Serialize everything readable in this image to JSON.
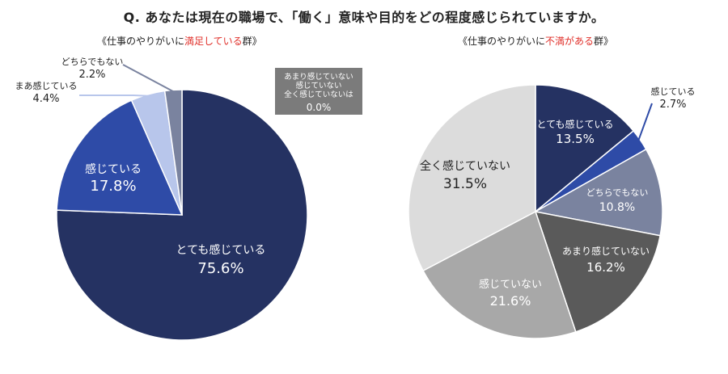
{
  "title": "Q. あなたは現在の職場で、「働く」意味や目的をどの程度感じられていますか。",
  "charts": {
    "left": {
      "subtitle": {
        "pre": "《仕事のやりがいに",
        "hl": "満足している",
        "post": "群》"
      }
    },
    "right": {
      "subtitle": {
        "pre": "《仕事のやりがいに",
        "hl": "不満がある",
        "post": "群》"
      }
    }
  },
  "chart_data": [
    {
      "type": "pie",
      "title": "《仕事のやりがいに満足している群》",
      "slices": [
        {
          "label": "とても感じている",
          "value": 75.6,
          "value_text": "75.6%",
          "color": "#253262"
        },
        {
          "label": "感じている",
          "value": 17.8,
          "value_text": "17.8%",
          "color": "#2e4ba7"
        },
        {
          "label": "まあ感じている",
          "value": 4.4,
          "value_text": "4.4%",
          "color": "#b8c6eb"
        },
        {
          "label": "どちらでもない",
          "value": 2.2,
          "value_text": "2.2%",
          "color": "#7a839f"
        }
      ],
      "callout": {
        "lines": [
          "あまり感じていない",
          "感じていない",
          "全く感じていないは"
        ],
        "value_text": "0.0%",
        "color": "#7b7b7b"
      }
    },
    {
      "type": "pie",
      "title": "《仕事のやりがいに不満がある群》",
      "slices": [
        {
          "label": "とても感じている",
          "value": 13.5,
          "value_text": "13.5%",
          "color": "#253262"
        },
        {
          "label": "感じている",
          "value": 2.7,
          "value_text": "2.7%",
          "color": "#2e4ba7"
        },
        {
          "label": "どちらでもない",
          "value": 10.8,
          "value_text": "10.8%",
          "color": "#7a839f"
        },
        {
          "label": "あまり感じていない",
          "value": 16.2,
          "value_text": "16.2%",
          "color": "#5a5a5a"
        },
        {
          "label": "感じていない",
          "value": 21.6,
          "value_text": "21.6%",
          "color": "#a8a8a8"
        },
        {
          "label": "全く感じていない",
          "value": 31.5,
          "value_text": "31.5%",
          "color": "#dcdcdc"
        }
      ]
    }
  ]
}
